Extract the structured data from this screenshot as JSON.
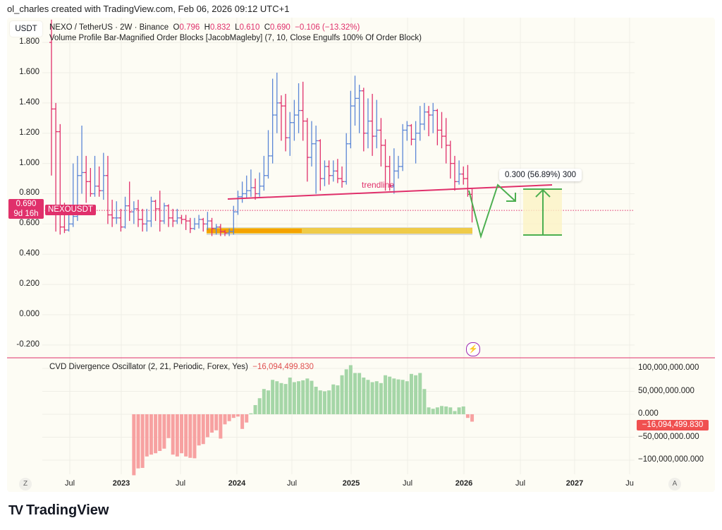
{
  "header": {
    "attribution": "ol_charles created with TradingView.com, Feb 06, 2026 09:12 UTC+1"
  },
  "main_pane": {
    "currency_button": "USDT",
    "symbol_title": "NEXO / TetherUS · 2W · Binance",
    "ohlc": {
      "o_label": "O",
      "o": "0.796",
      "h_label": "H",
      "h": "0.832",
      "l_label": "L",
      "l": "0.610",
      "c_label": "C",
      "c": "0.690",
      "change": "−0.106 (−13.32%)"
    },
    "indicator": "Volume Profile Bar-Magnified Order Blocks [JacobMagleby] (7, 10, Close Engulfs 100% Of Order Block)",
    "price_tag": {
      "price": "0.690",
      "countdown": "9d 16h",
      "symbol": "NEXOUSDT"
    },
    "trendline_label": "trendline",
    "measure_label": "0.300 (56.89%) 300",
    "alert_icon": "lightning-icon"
  },
  "oscillator_pane": {
    "title": "CVD Divergence Oscillator (2, 21, Periodic, Forex, Yes)",
    "value": "−16,094,499.830",
    "value_tag": "−16,094,499.830"
  },
  "time_axis": {
    "left_button": "Z",
    "right_button": "A"
  },
  "branding": {
    "logo_text": "TradingView"
  },
  "colors": {
    "up": "#5b86d6",
    "down": "#e0306b",
    "osc_pos": "#a5d6a7",
    "osc_neg": "#f7a1a1",
    "trendline": "#e0306b",
    "projection": "#4caf50",
    "order_block": "#f5c518"
  },
  "chart_data": [
    {
      "type": "ohlc",
      "interval": "2W",
      "y_ticks": [
        "1.800",
        "1.600",
        "1.400",
        "1.200",
        "1.000",
        "0.800",
        "0.600",
        "0.400",
        "0.200",
        "0.000",
        "-0.200"
      ],
      "ylim": [
        -0.2,
        1.8
      ],
      "x_ticks": [
        {
          "label": "Jul",
          "bold": false
        },
        {
          "label": "2023",
          "bold": true
        },
        {
          "label": "Jul",
          "bold": false
        },
        {
          "label": "2024",
          "bold": true
        },
        {
          "label": "Jul",
          "bold": false
        },
        {
          "label": "2025",
          "bold": true
        },
        {
          "label": "Jul",
          "bold": false
        },
        {
          "label": "2026",
          "bold": true
        },
        {
          "label": "Jul",
          "bold": false
        },
        {
          "label": "2027",
          "bold": true
        },
        {
          "label": "Ju",
          "bold": false
        }
      ],
      "open": [
        1.8,
        1.36,
        1.21,
        0.58,
        0.56,
        0.6,
        0.65,
        0.92,
        0.94,
        0.88,
        0.8,
        0.85,
        0.82,
        0.92,
        0.66,
        0.64,
        0.64,
        0.58,
        0.72,
        0.68,
        0.7,
        0.63,
        0.6,
        0.62,
        0.75,
        0.7,
        0.62,
        0.72,
        0.64,
        0.62,
        0.64,
        0.63,
        0.62,
        0.57,
        0.6,
        0.63,
        0.6,
        0.62,
        0.57,
        0.58,
        0.55,
        0.54,
        0.55,
        0.68,
        0.78,
        0.8,
        0.82,
        0.84,
        0.8,
        0.85,
        0.92,
        1.05,
        1.32,
        1.4,
        1.38,
        1.17,
        1.27,
        1.32,
        1.35,
        1.28,
        1.04,
        1.13,
        1.15,
        0.9,
        0.98,
        0.92,
        0.95,
        0.9,
        0.88,
        1.13,
        1.38,
        1.43,
        1.48,
        1.2,
        1.28,
        1.18,
        1.22,
        1.12,
        0.98,
        0.85,
        0.95,
        0.98,
        1.22,
        1.25,
        1.16,
        1.2,
        1.26,
        1.34,
        1.32,
        1.35,
        1.22,
        1.18,
        1.12,
        1.0,
        0.88,
        0.93,
        0.9,
        0.796
      ],
      "high": [
        1.95,
        1.4,
        1.26,
        0.74,
        0.72,
        1.0,
        1.05,
        1.25,
        1.05,
        0.97,
        1.05,
        0.98,
        1.07,
        1.05,
        0.76,
        0.75,
        0.7,
        0.78,
        0.88,
        0.75,
        0.76,
        0.7,
        0.7,
        0.78,
        0.76,
        0.82,
        0.74,
        0.73,
        0.7,
        0.7,
        0.66,
        0.66,
        0.64,
        0.64,
        0.66,
        0.64,
        0.68,
        0.64,
        0.6,
        0.6,
        0.56,
        0.57,
        0.72,
        0.82,
        0.88,
        0.92,
        0.96,
        0.9,
        0.94,
        1.05,
        1.22,
        1.56,
        1.6,
        1.45,
        1.46,
        1.34,
        1.42,
        1.53,
        1.54,
        1.3,
        1.28,
        1.25,
        1.16,
        1.02,
        1.02,
        1.02,
        1.03,
        0.98,
        1.2,
        1.48,
        1.58,
        1.52,
        1.5,
        1.43,
        1.46,
        1.42,
        1.3,
        1.16,
        1.05,
        1.1,
        1.05,
        1.26,
        1.28,
        1.26,
        1.28,
        1.38,
        1.4,
        1.38,
        1.4,
        1.36,
        1.34,
        1.3,
        1.15,
        1.05,
        1.02,
        0.98,
        0.99,
        0.832
      ],
      "low": [
        0.92,
        0.55,
        0.53,
        0.54,
        0.55,
        0.58,
        0.62,
        0.8,
        0.74,
        0.78,
        0.78,
        0.78,
        0.76,
        0.6,
        0.58,
        0.6,
        0.55,
        0.57,
        0.62,
        0.6,
        0.58,
        0.55,
        0.55,
        0.58,
        0.62,
        0.55,
        0.6,
        0.58,
        0.58,
        0.6,
        0.6,
        0.56,
        0.54,
        0.56,
        0.57,
        0.55,
        0.56,
        0.52,
        0.53,
        0.52,
        0.52,
        0.52,
        0.53,
        0.66,
        0.74,
        0.77,
        0.78,
        0.76,
        0.78,
        0.82,
        0.9,
        1.0,
        1.2,
        1.15,
        1.08,
        1.05,
        1.15,
        1.2,
        1.15,
        0.88,
        0.98,
        0.8,
        0.82,
        0.85,
        0.86,
        0.88,
        0.87,
        0.84,
        0.86,
        1.1,
        1.25,
        1.2,
        1.08,
        1.1,
        1.05,
        1.1,
        0.98,
        0.82,
        0.82,
        0.8,
        0.9,
        0.95,
        1.15,
        1.12,
        1.0,
        1.15,
        1.22,
        1.18,
        1.2,
        1.12,
        1.1,
        1.0,
        0.9,
        0.82,
        0.86,
        0.86,
        0.78,
        0.61
      ],
      "close": [
        1.36,
        1.21,
        0.58,
        0.56,
        0.6,
        0.65,
        0.92,
        0.94,
        0.88,
        0.8,
        0.85,
        0.82,
        0.92,
        0.66,
        0.64,
        0.64,
        0.58,
        0.72,
        0.68,
        0.7,
        0.63,
        0.6,
        0.62,
        0.75,
        0.7,
        0.62,
        0.72,
        0.64,
        0.62,
        0.64,
        0.63,
        0.62,
        0.57,
        0.6,
        0.63,
        0.6,
        0.62,
        0.57,
        0.58,
        0.55,
        0.54,
        0.55,
        0.68,
        0.78,
        0.8,
        0.82,
        0.84,
        0.8,
        0.85,
        0.92,
        1.05,
        1.32,
        1.4,
        1.38,
        1.17,
        1.27,
        1.32,
        1.35,
        1.28,
        1.04,
        1.13,
        1.15,
        0.9,
        0.98,
        0.92,
        0.95,
        0.9,
        0.88,
        1.13,
        1.38,
        1.43,
        1.48,
        1.2,
        1.28,
        1.18,
        1.22,
        1.12,
        0.98,
        0.85,
        0.95,
        0.98,
        1.22,
        1.25,
        1.16,
        1.2,
        1.26,
        1.34,
        1.32,
        1.35,
        1.22,
        1.18,
        1.12,
        1.0,
        0.88,
        0.93,
        0.9,
        0.796,
        0.69
      ],
      "last_price": 0.69
    },
    {
      "type": "bar",
      "title": "CVD Divergence Oscillator (2, 21, Periodic, Forex, Yes)",
      "y_ticks": [
        "100,000,000.000",
        "50,000,000.000",
        "0.000",
        "−50,000,000.000",
        "−100,000,000.000"
      ],
      "ylim": [
        -135000000,
        110000000
      ],
      "values_millions": [
        -133,
        -118,
        -117,
        -92,
        -88,
        -85,
        -80,
        -75,
        -52,
        -88,
        -92,
        -85,
        -92,
        -95,
        -96,
        -68,
        -65,
        -50,
        -40,
        -35,
        -53,
        -22,
        -15,
        -8,
        -5,
        -32,
        -18,
        2,
        20,
        35,
        55,
        52,
        75,
        72,
        68,
        66,
        80,
        70,
        72,
        74,
        78,
        73,
        60,
        52,
        50,
        52,
        65,
        63,
        85,
        98,
        107,
        90,
        90,
        80,
        75,
        70,
        72,
        68,
        85,
        82,
        78,
        76,
        75,
        72,
        88,
        85,
        90,
        55,
        15,
        12,
        15,
        18,
        17,
        15,
        7,
        15,
        17,
        -8,
        -16.09
      ]
    }
  ]
}
